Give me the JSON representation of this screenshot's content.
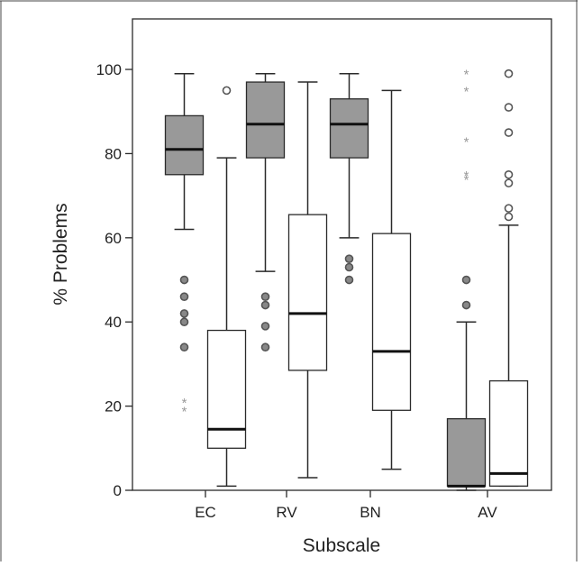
{
  "chart_data": {
    "type": "boxplot",
    "title": "",
    "xlabel": "Subscale",
    "ylabel": "% Problems",
    "ylim": [
      0,
      112
    ],
    "yticks": [
      0,
      20,
      40,
      60,
      80,
      100
    ],
    "categories": [
      "EC",
      "RV",
      "BN",
      "AV"
    ],
    "grid": false,
    "legend": "none",
    "colors": {
      "filled": "#999999",
      "open": "#ffffff",
      "outline": "#2a2a2a",
      "outlier": "#888888",
      "extreme": "#9a9a9a"
    },
    "boxes": [
      {
        "category": "EC",
        "style": "filled",
        "whisker_low": 62,
        "q1": 75,
        "median": 81,
        "q3": 89,
        "whisker_high": 99,
        "outliers": [
          50,
          46,
          42,
          40,
          34
        ],
        "extremes": [
          21,
          19
        ]
      },
      {
        "category": "EC",
        "style": "open",
        "whisker_low": 1,
        "q1": 10,
        "median": 14.5,
        "q3": 38,
        "whisker_high": 79,
        "outliers": [
          95
        ],
        "extremes": []
      },
      {
        "category": "RV",
        "style": "filled",
        "whisker_low": 52,
        "q1": 79,
        "median": 87,
        "q3": 97,
        "whisker_high": 99,
        "outliers": [
          46,
          44,
          39,
          34
        ],
        "extremes": []
      },
      {
        "category": "RV",
        "style": "open",
        "whisker_low": 3,
        "q1": 28.5,
        "median": 42,
        "q3": 65.5,
        "whisker_high": 97,
        "outliers": [],
        "extremes": []
      },
      {
        "category": "BN",
        "style": "filled",
        "whisker_low": 60,
        "q1": 79,
        "median": 87,
        "q3": 93,
        "whisker_high": 99,
        "outliers": [
          55,
          53,
          50
        ],
        "extremes": []
      },
      {
        "category": "BN",
        "style": "open",
        "whisker_low": 5,
        "q1": 19,
        "median": 33,
        "q3": 61,
        "whisker_high": 95,
        "outliers": [],
        "extremes": []
      },
      {
        "category": "AV",
        "style": "filled",
        "whisker_low": 0,
        "q1": 1,
        "median": 1,
        "q3": 17,
        "whisker_high": 40,
        "outliers": [
          50,
          44
        ],
        "extremes": [
          99,
          95,
          83,
          75,
          74
        ]
      },
      {
        "category": "AV",
        "style": "open",
        "whisker_low": 1,
        "q1": 1,
        "median": 4,
        "q3": 26,
        "whisker_high": 63,
        "outliers": [
          99,
          91,
          85,
          75,
          73,
          67,
          65
        ],
        "extremes": []
      }
    ]
  }
}
